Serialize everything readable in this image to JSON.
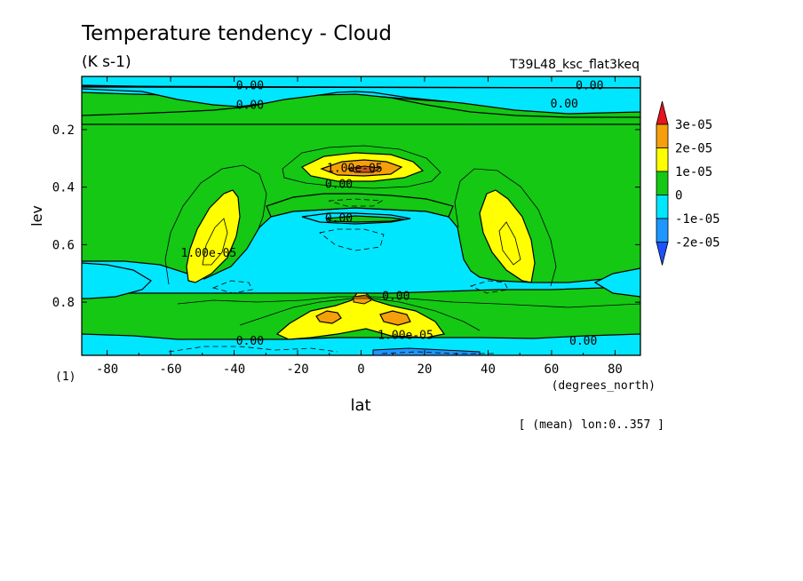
{
  "chart_data": {
    "type": "heatmap",
    "title": "Temperature tendency - Cloud",
    "subtitle": "(K s-1)",
    "run_label": "T39L48_ksc_flat3keq",
    "xlabel": "lat",
    "x_unit_label": "(degrees_north)",
    "ylabel": "lev",
    "y_unit_label": "(1)",
    "mean_note": "[ (mean) lon:0..357 ]",
    "xlim": [
      -88,
      88
    ],
    "ylim": [
      0.985,
      0.015
    ],
    "x_ticks": [
      -80,
      -60,
      -40,
      -20,
      0,
      20,
      40,
      60,
      80
    ],
    "x_tick_labels": [
      "-80",
      "-60",
      "-40",
      "-20",
      "0",
      "20",
      "40",
      "60",
      "80"
    ],
    "y_ticks": [
      0.2,
      0.4,
      0.6,
      0.8
    ],
    "y_tick_labels": [
      "0.2",
      "0.4",
      "0.6",
      "0.8"
    ],
    "colorbar": {
      "levels": [
        "3e-05",
        "2e-05",
        "1e-05",
        "0",
        "-1e-05",
        "-2e-05"
      ],
      "colors": [
        "#e8141e",
        "#f5a00a",
        "#ffff00",
        "#14c814",
        "#00e6ff",
        "#1e96ff",
        "#1e50ff"
      ]
    },
    "fill_colors": {
      "neg1": "#00e6ff",
      "neg2": "#1e96ff",
      "zero": "#14c814",
      "pos1": "#ffff00",
      "pos2": "#f5a00a"
    },
    "contour_labels": [
      {
        "text": "0.00",
        "lat": -35,
        "lev": 0.047
      },
      {
        "text": "0.00",
        "lat": 72,
        "lev": 0.047
      },
      {
        "text": "0.00",
        "lat": -35,
        "lev": 0.115
      },
      {
        "text": "0.00",
        "lat": 64,
        "lev": 0.11
      },
      {
        "text": "1.00e-05",
        "lat": -2,
        "lev": 0.335
      },
      {
        "text": "0.00",
        "lat": -7,
        "lev": 0.39
      },
      {
        "text": "0.00",
        "lat": -7,
        "lev": 0.51
      },
      {
        "text": "1.00e-05",
        "lat": -48,
        "lev": 0.63
      },
      {
        "text": "0.00",
        "lat": 11,
        "lev": 0.78
      },
      {
        "text": "1.00e-05",
        "lat": 14,
        "lev": 0.915
      },
      {
        "text": "0.00",
        "lat": -35,
        "lev": 0.935
      },
      {
        "text": "0.00",
        "lat": 70,
        "lev": 0.935
      }
    ]
  }
}
